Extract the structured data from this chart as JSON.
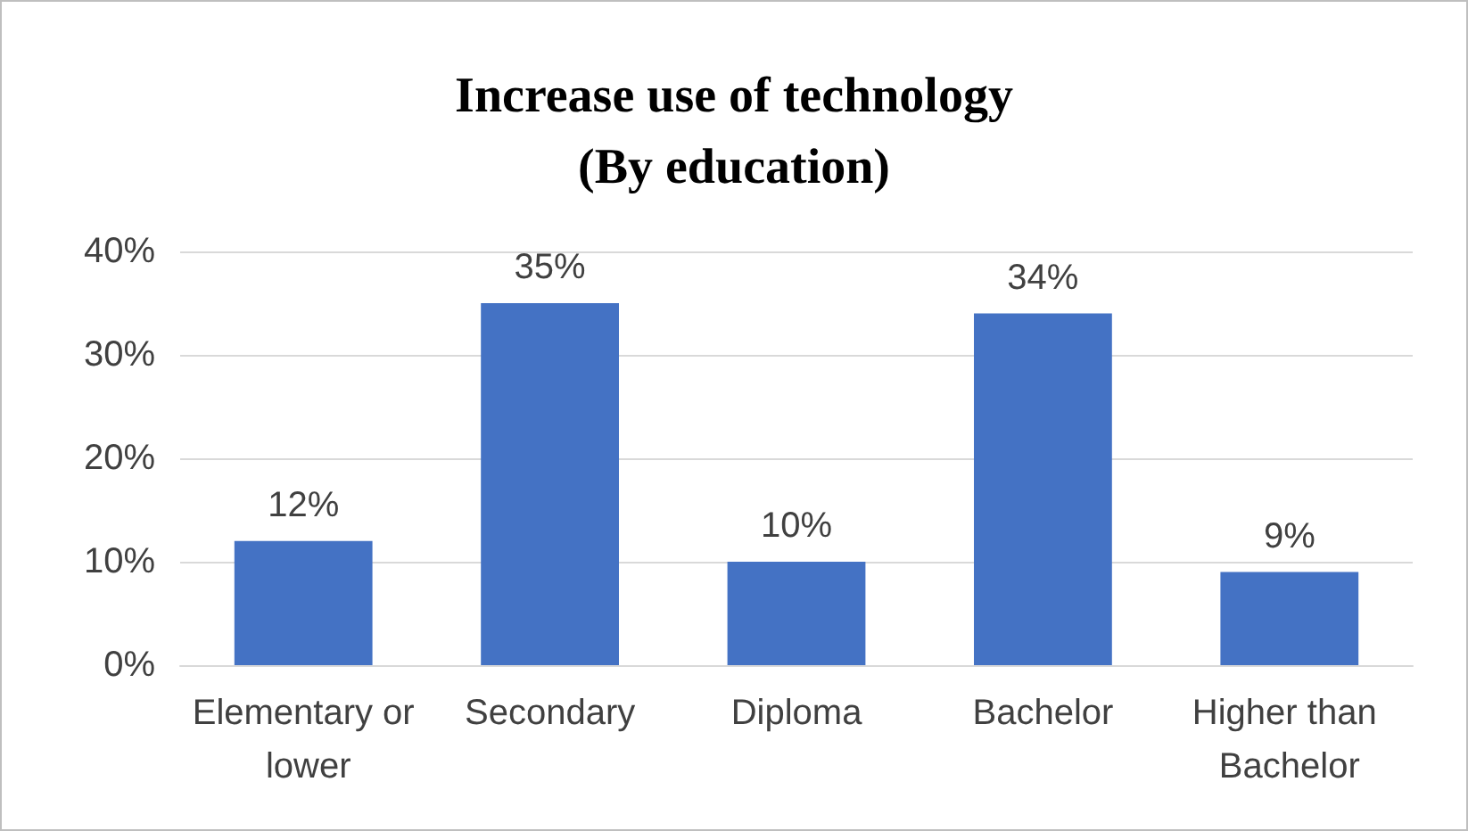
{
  "chart_data": {
    "type": "bar",
    "title": "Increase use of technology\n(By education)",
    "categories": [
      "Elementary or lower",
      "Secondary",
      "Diploma",
      "Bachelor",
      "Higher than Bachelor"
    ],
    "values": [
      12,
      35,
      10,
      34,
      9
    ],
    "value_labels": [
      "12%",
      "35%",
      "10%",
      "34%",
      "9%"
    ],
    "color": "#4472c4",
    "ylim": [
      0,
      40
    ],
    "yticks": [
      {
        "value": 0,
        "label": "0%"
      },
      {
        "value": 10,
        "label": "10%"
      },
      {
        "value": 20,
        "label": "20%"
      },
      {
        "value": 30,
        "label": "30%"
      },
      {
        "value": 40,
        "label": "40%"
      }
    ],
    "grid": "y"
  }
}
